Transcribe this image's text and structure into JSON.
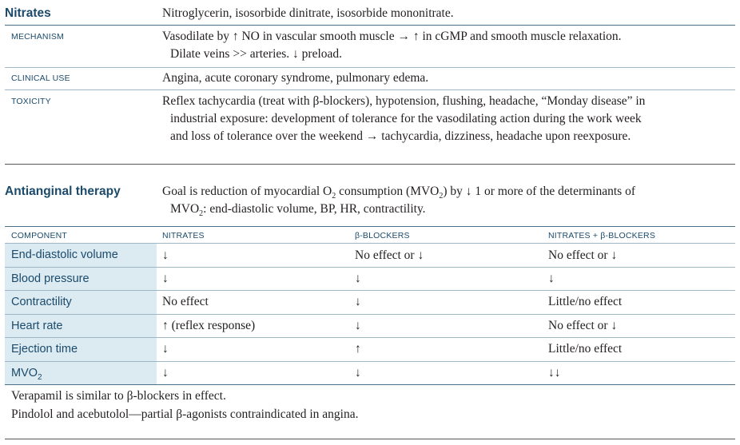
{
  "nitrates": {
    "heading": "Nitrates",
    "drugs": "Nitroglycerin, isosorbide dinitrate, isosorbide mononitrate.",
    "mechanism_label": "MECHANISM",
    "mechanism_line1": "Vasodilate by ↑ NO in vascular smooth muscle → ↑ in cGMP and smooth muscle relaxation.",
    "mechanism_line2": "Dilate veins >> arteries. ↓ preload.",
    "clinical_label": "CLINICAL USE",
    "clinical_text": "Angina, acute coronary syndrome, pulmonary edema.",
    "toxicity_label": "TOXICITY",
    "toxicity_line1": "Reflex tachycardia (treat with β-blockers), hypotension, flushing, headache, “Monday disease” in",
    "toxicity_line2": "industrial exposure: development of tolerance for the vasodilating action during the work week",
    "toxicity_line3": "and loss of tolerance over the weekend → tachycardia, dizziness, headache upon reexposure."
  },
  "antianginal": {
    "heading": "Antianginal therapy",
    "goal_line1_pre": "Goal is reduction of myocardial O",
    "goal_line1_sub": "2",
    "goal_line1_mid": " consumption (MVO",
    "goal_line1_sub2": "2",
    "goal_line1_post": ") by ↓ 1 or more of the determinants of",
    "goal_line2_pre": "MVO",
    "goal_line2_sub": "2",
    "goal_line2_post": ": end-diastolic volume, BP, HR, contractility.",
    "columns": [
      "COMPONENT",
      "NITRATES",
      "β-BLOCKERS",
      "NITRATES + β-BLOCKERS"
    ],
    "rows": [
      {
        "component": "End-diastolic volume",
        "nitrates": "↓",
        "beta": "No effect or ↓",
        "combo": "No effect or ↓"
      },
      {
        "component": "Blood pressure",
        "nitrates": "↓",
        "beta": "↓",
        "combo": "↓"
      },
      {
        "component": "Contractility",
        "nitrates": "No effect",
        "beta": "↓",
        "combo": "Little/no effect"
      },
      {
        "component": "Heart rate",
        "nitrates": "↑ (reflex response)",
        "beta": "↓",
        "combo": "No effect or ↓"
      },
      {
        "component": "Ejection time",
        "nitrates": "↓",
        "beta": "↑",
        "combo": "Little/no effect"
      },
      {
        "component": "MVO",
        "component_sub": "2",
        "nitrates": "↓",
        "beta": "↓",
        "combo": "↓↓"
      }
    ],
    "note1": "Verapamil is similar to β-blockers in effect.",
    "note2": "Pindolol and acebutolol—partial β-agonists contraindicated in angina."
  }
}
